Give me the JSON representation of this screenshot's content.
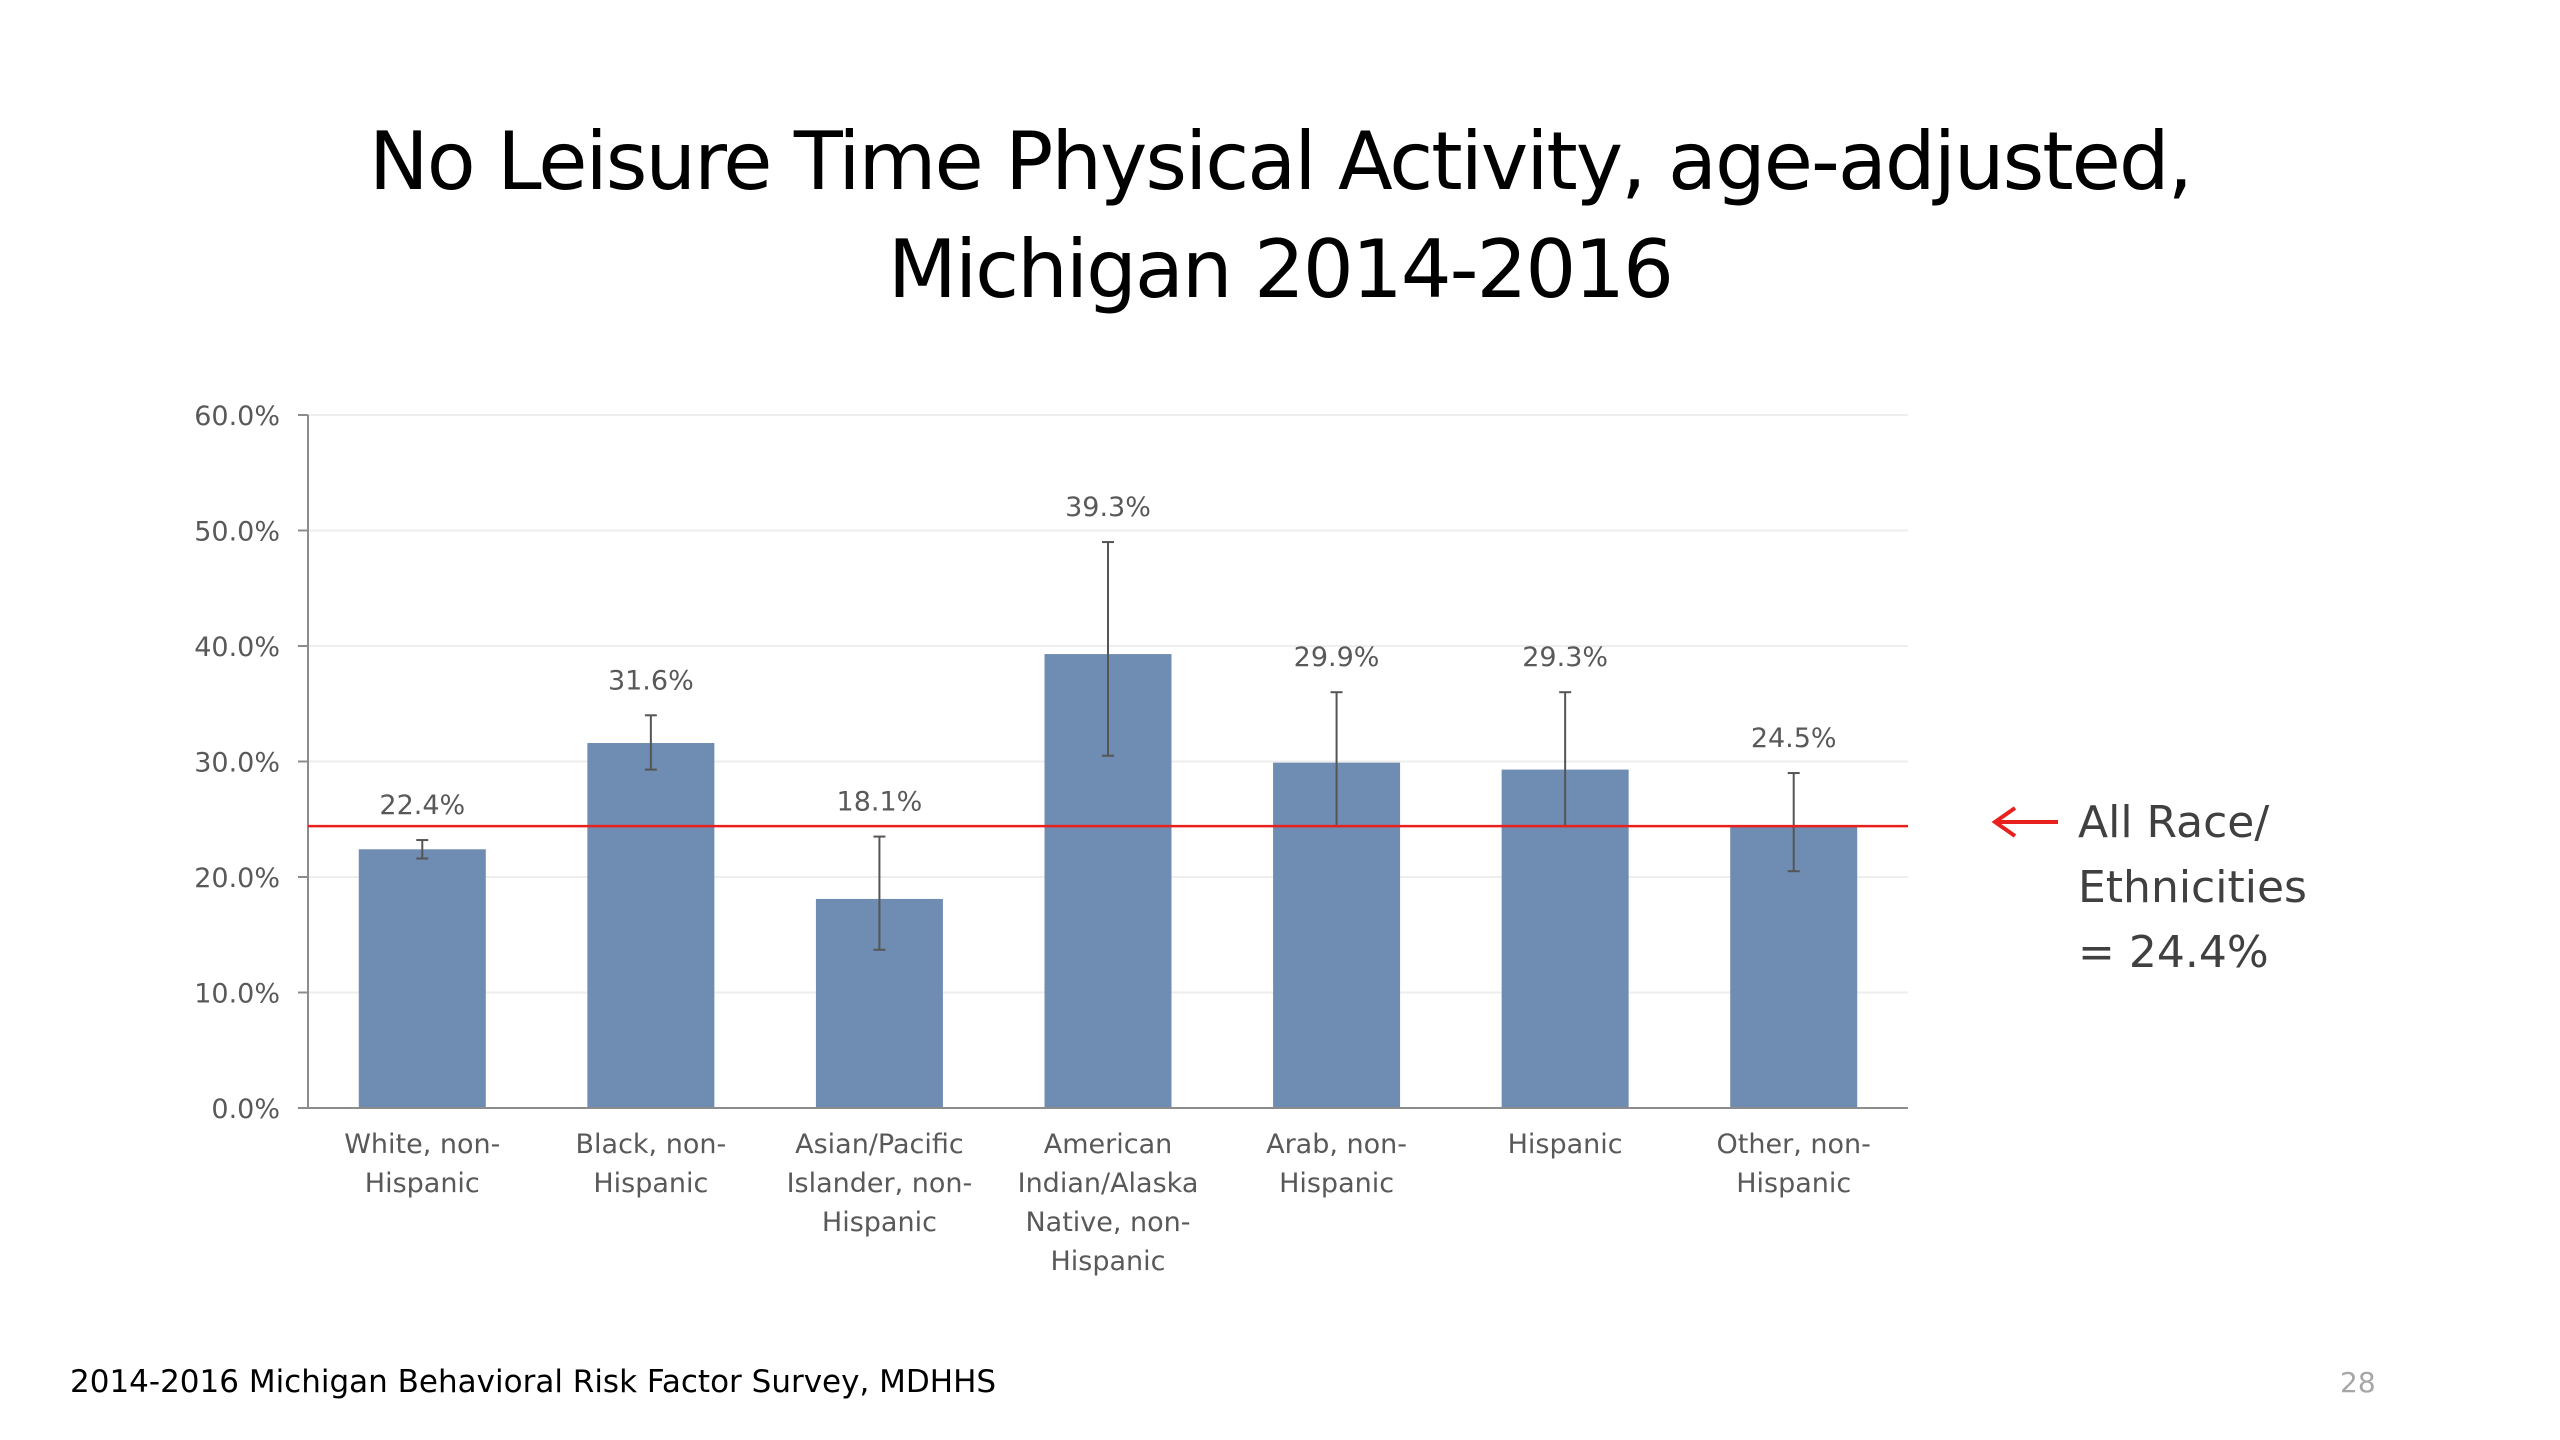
{
  "slide": {
    "title_line1": "No Leisure Time Physical Activity, age-adjusted,",
    "title_line2": "Michigan 2014-2016",
    "note_line1": "All Race/",
    "note_line2": "Ethnicities",
    "note_line3": "= 24.4%",
    "source": "2014-2016 Michigan Behavioral Risk Factor Survey, MDHHS",
    "page_number": "28"
  },
  "colors": {
    "bar": "#6f8db2",
    "reference_line": "#e8211f",
    "error_bar": "#555555",
    "axis": "#8c8c8c",
    "grid": "#eeeeee",
    "label": "#595959"
  },
  "chart_data": {
    "type": "bar",
    "title": "No Leisure Time Physical Activity, age-adjusted, Michigan 2014-2016",
    "categories": [
      [
        "White, non-",
        "Hispanic"
      ],
      [
        "Black, non-",
        "Hispanic"
      ],
      [
        "Asian/Pacific",
        "Islander, non-",
        "Hispanic"
      ],
      [
        "American",
        "Indian/Alaska",
        "Native, non-",
        "Hispanic"
      ],
      [
        "Arab, non-",
        "Hispanic"
      ],
      [
        "Hispanic"
      ],
      [
        "Other, non-",
        "Hispanic"
      ]
    ],
    "values": [
      22.4,
      31.6,
      18.1,
      39.3,
      29.9,
      29.3,
      24.5
    ],
    "data_labels": [
      "22.4%",
      "31.6%",
      "18.1%",
      "39.3%",
      "29.9%",
      "29.3%",
      "24.5%"
    ],
    "error_low": [
      21.6,
      29.3,
      13.7,
      30.5,
      24.4,
      24.4,
      20.5
    ],
    "error_high": [
      23.2,
      34.0,
      23.5,
      49.0,
      36.0,
      36.0,
      29.0
    ],
    "reference_line": 24.4,
    "ylim": [
      0,
      60
    ],
    "yticks": [
      0,
      10,
      20,
      30,
      40,
      50,
      60
    ],
    "ytick_labels": [
      "0.0%",
      "10.0%",
      "20.0%",
      "30.0%",
      "40.0%",
      "50.0%",
      "60.0%"
    ],
    "grid": true,
    "legend": "none"
  }
}
